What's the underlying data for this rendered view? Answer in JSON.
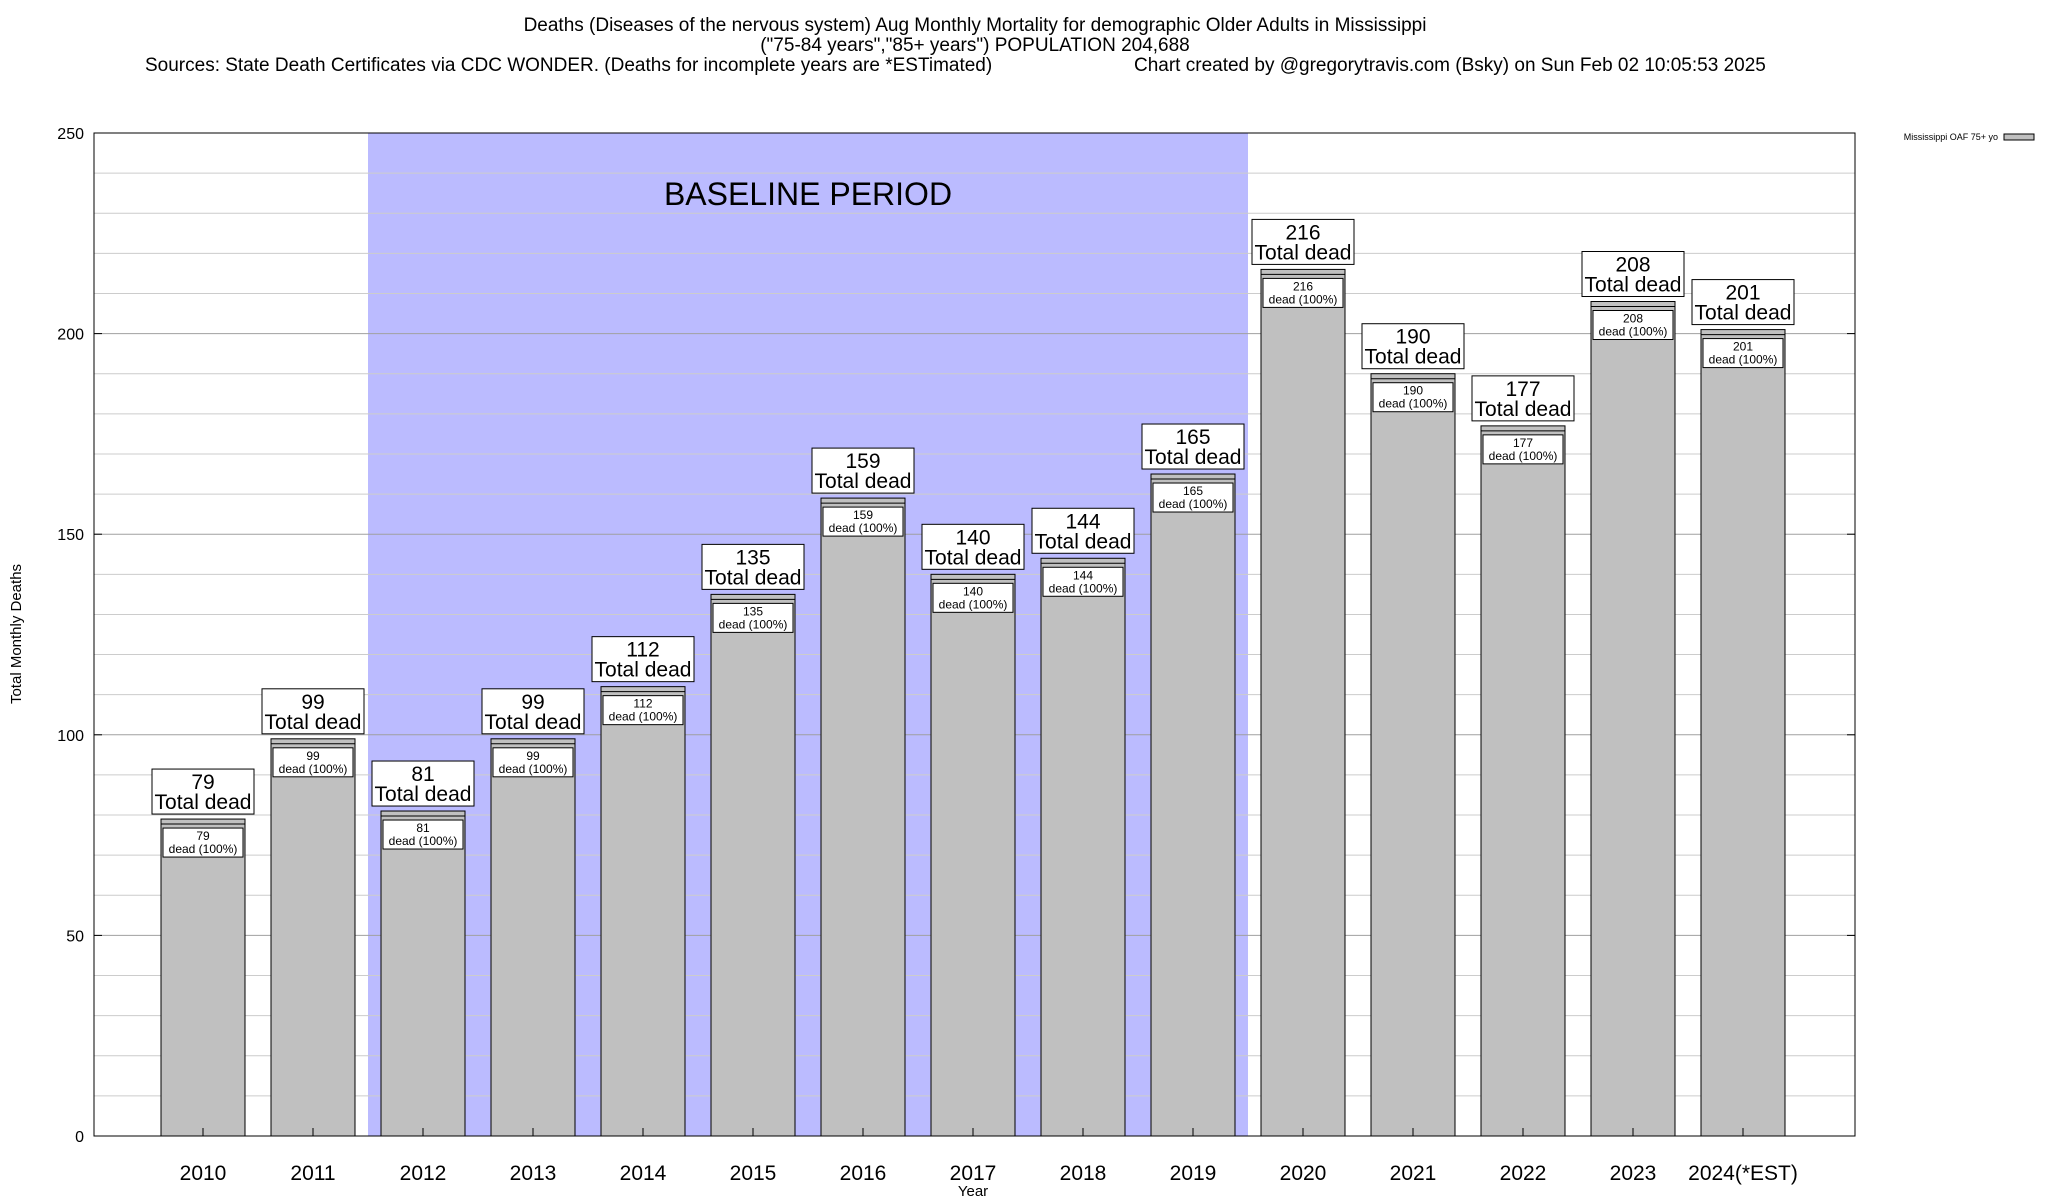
{
  "chart_data": {
    "type": "bar",
    "title": "Deaths (Diseases of the nervous system) Aug Monthly Mortality for demographic Older Adults in Mississippi",
    "subtitle": "(\"75-84 years\",\"85+ years\") POPULATION 204,688",
    "sources": "Sources: State Death Certificates via CDC WONDER. (Deaths for incomplete years are *ESTimated)",
    "credit": "Chart created by @gregorytravis.com (Bsky) on Sun Feb 02 10:05:53 2025",
    "xlabel": "Year",
    "ylabel": "Total Monthly Deaths",
    "ylim": [
      0,
      250
    ],
    "yticks": [
      "0",
      "50",
      "100",
      "150",
      "200",
      "250"
    ],
    "categories": [
      "2010",
      "2011",
      "2012",
      "2013",
      "2014",
      "2015",
      "2016",
      "2017",
      "2018",
      "2019",
      "2020",
      "2021",
      "2022",
      "2023",
      "2024(*EST)"
    ],
    "series": [
      {
        "name": "Mississippi OAF 75+ yo",
        "values": [
          79,
          99,
          81,
          99,
          112,
          135,
          159,
          140,
          144,
          165,
          216,
          190,
          177,
          208,
          201
        ]
      }
    ],
    "total_labels": [
      "79",
      "99",
      "81",
      "99",
      "112",
      "135",
      "159",
      "140",
      "144",
      "165",
      "216",
      "190",
      "177",
      "208",
      "201"
    ],
    "total_label_suffix": "Total dead",
    "inner_labels": [
      "79",
      "99",
      "81",
      "99",
      "112",
      "135",
      "159",
      "140",
      "144",
      "165",
      "216",
      "190",
      "177",
      "208",
      "201"
    ],
    "inner_label_suffix": "dead (100%)",
    "baseline": {
      "label": "BASELINE PERIOD",
      "start": "2012",
      "end": "2019",
      "color": "#bbbbff"
    },
    "bar_color": "#c0c0c0",
    "grid": true,
    "legend_position": "top-right"
  }
}
